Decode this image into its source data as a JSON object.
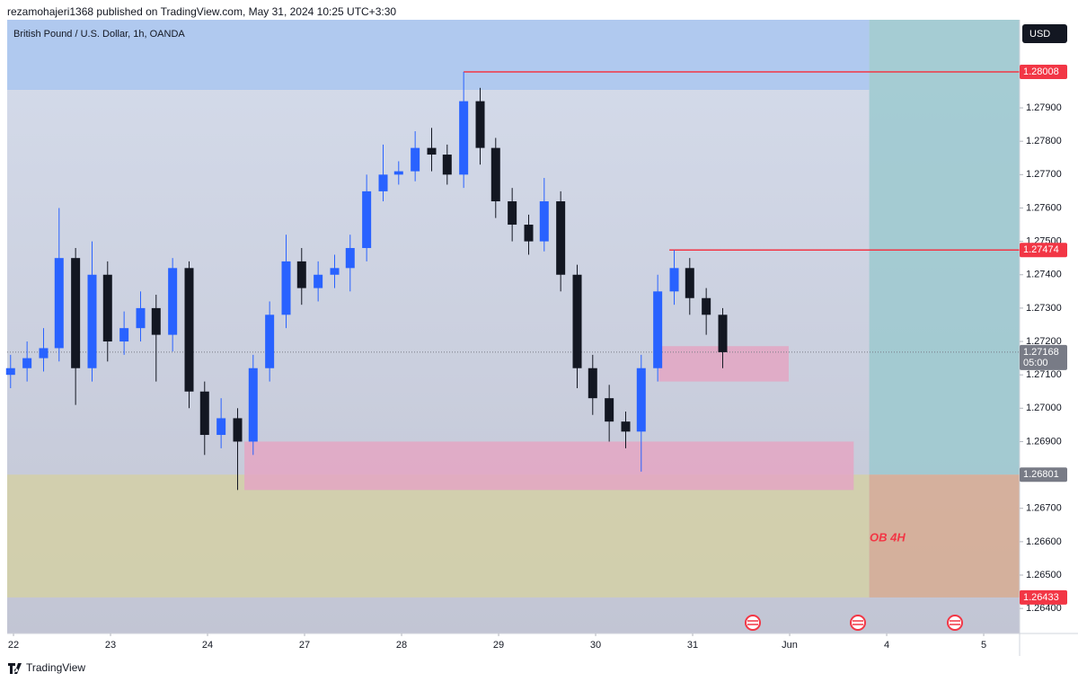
{
  "header": "rezamohajeri1368 published on TradingView.com, May 31, 2024 10:25 UTC+3:30",
  "footer": "TradingView",
  "chart_data": {
    "type": "candlestick",
    "title": "British Pound / U.S. Dollar, 1h, OANDA",
    "currency": "USD",
    "annotation": "OB 4H",
    "up_color": "#2962ff",
    "down_color": "#131722",
    "x": [
      -0.03,
      0.14,
      0.31,
      0.47,
      0.64,
      0.81,
      0.97,
      1.14,
      1.31,
      1.47,
      1.64,
      1.81,
      1.97,
      2.14,
      2.31,
      2.47,
      2.64,
      2.81,
      2.97,
      3.14,
      3.31,
      3.47,
      3.64,
      3.81,
      3.97,
      4.14,
      4.31,
      4.47,
      4.64,
      4.81,
      4.97,
      5.14,
      5.31,
      5.47,
      5.64,
      5.81,
      5.97,
      6.14,
      6.31,
      6.47,
      6.64,
      6.81,
      6.97,
      7.14,
      7.31
    ],
    "open": [
      1.271,
      1.2712,
      1.2715,
      1.2718,
      1.2745,
      1.2712,
      1.274,
      1.272,
      1.2724,
      1.273,
      1.2722,
      1.2742,
      1.2705,
      1.2692,
      1.2697,
      1.269,
      1.2712,
      1.2728,
      1.2744,
      1.2736,
      1.274,
      1.2742,
      1.2748,
      1.2765,
      1.277,
      1.2771,
      1.2778,
      1.2776,
      1.277,
      1.2792,
      1.2778,
      1.2762,
      1.2755,
      1.275,
      1.2762,
      1.274,
      1.2712,
      1.2703,
      1.2696,
      1.2693,
      1.2712,
      1.2735,
      1.2742,
      1.2733,
      1.2728
    ],
    "high": [
      1.2716,
      1.272,
      1.2724,
      1.276,
      1.2748,
      1.275,
      1.2744,
      1.2729,
      1.2735,
      1.2734,
      1.2745,
      1.2744,
      1.2708,
      1.2703,
      1.27,
      1.2716,
      1.2732,
      1.2752,
      1.2748,
      1.2744,
      1.2746,
      1.2752,
      1.277,
      1.2779,
      1.2774,
      1.2783,
      1.2784,
      1.2779,
      1.28008,
      1.2796,
      1.2781,
      1.2766,
      1.2758,
      1.2769,
      1.2765,
      1.2743,
      1.2716,
      1.2707,
      1.2699,
      1.2716,
      1.274,
      1.27474,
      1.2745,
      1.2736,
      1.273
    ],
    "low": [
      1.2706,
      1.2708,
      1.2711,
      1.2714,
      1.2701,
      1.2708,
      1.2714,
      1.2716,
      1.272,
      1.2708,
      1.2717,
      1.27,
      1.2686,
      1.2688,
      1.26755,
      1.2686,
      1.2708,
      1.2724,
      1.2731,
      1.2732,
      1.2736,
      1.2735,
      1.2744,
      1.2762,
      1.2767,
      1.2768,
      1.2771,
      1.2767,
      1.2766,
      1.2773,
      1.2757,
      1.275,
      1.2746,
      1.2747,
      1.2735,
      1.2706,
      1.2698,
      1.269,
      1.2688,
      1.2681,
      1.2708,
      1.2731,
      1.2728,
      1.2722,
      1.2712
    ],
    "close": [
      1.2712,
      1.2715,
      1.2718,
      1.2745,
      1.2712,
      1.274,
      1.272,
      1.2724,
      1.273,
      1.2722,
      1.2742,
      1.2705,
      1.2692,
      1.2697,
      1.269,
      1.2712,
      1.2728,
      1.2744,
      1.2736,
      1.274,
      1.2742,
      1.2748,
      1.2765,
      1.277,
      1.2771,
      1.2778,
      1.2776,
      1.277,
      1.2792,
      1.2778,
      1.2762,
      1.2755,
      1.275,
      1.2762,
      1.274,
      1.2712,
      1.2703,
      1.2696,
      1.2693,
      1.2712,
      1.2735,
      1.2742,
      1.2733,
      1.2728,
      1.27168
    ],
    "xlim": [
      -0.065,
      10.37
    ],
    "xticks": [
      {
        "value": 0,
        "label": "22"
      },
      {
        "value": 1,
        "label": "23"
      },
      {
        "value": 2,
        "label": "24"
      },
      {
        "value": 3,
        "label": "27"
      },
      {
        "value": 4,
        "label": "28"
      },
      {
        "value": 5,
        "label": "29"
      },
      {
        "value": 6,
        "label": "30"
      },
      {
        "value": 7,
        "label": "31"
      },
      {
        "value": 8,
        "label": "Jun"
      },
      {
        "value": 9,
        "label": "4"
      },
      {
        "value": 10,
        "label": "5"
      }
    ],
    "ylim": [
      1.26325,
      1.28164
    ],
    "yticks": [
      {
        "value": 1.264,
        "label": "1.26400"
      },
      {
        "value": 1.265,
        "label": "1.26500"
      },
      {
        "value": 1.266,
        "label": "1.26600"
      },
      {
        "value": 1.267,
        "label": "1.26700"
      },
      {
        "value": 1.268,
        "label": "1.26800"
      },
      {
        "value": 1.269,
        "label": "1.26900"
      },
      {
        "value": 1.27,
        "label": "1.27000"
      },
      {
        "value": 1.271,
        "label": "1.27100"
      },
      {
        "value": 1.272,
        "label": "1.27200"
      },
      {
        "value": 1.273,
        "label": "1.27300"
      },
      {
        "value": 1.274,
        "label": "1.27400"
      },
      {
        "value": 1.275,
        "label": "1.27500"
      },
      {
        "value": 1.276,
        "label": "1.27600"
      },
      {
        "value": 1.277,
        "label": "1.27700"
      },
      {
        "value": 1.278,
        "label": "1.27800"
      },
      {
        "value": 1.279,
        "label": "1.27900"
      }
    ],
    "zones": [
      {
        "from_x": -0.065,
        "to_x": 8.82,
        "low": 1.27954,
        "high": 1.28164,
        "color": "#a9c6f0"
      },
      {
        "from_x": -0.065,
        "to_x": 8.82,
        "low": 1.26433,
        "high": 1.26801,
        "color": "#d3d0a6"
      },
      {
        "from_x": 8.82,
        "to_x": 10.37,
        "low": 1.26801,
        "high": 1.28164,
        "color": "#9cc9cf",
        "axis_label_color": "#787b86"
      },
      {
        "from_x": 8.82,
        "to_x": 10.37,
        "low": 1.26433,
        "high": 1.26801,
        "color": "#d7ab92",
        "axis_label_color": "#f23645"
      },
      {
        "from_x": 2.38,
        "to_x": 8.66,
        "low": 1.26755,
        "high": 1.269,
        "color": "#e4a6c3"
      },
      {
        "from_x": 6.65,
        "to_x": 7.99,
        "low": 1.2708,
        "high": 1.27186,
        "color": "#e4a6c3"
      }
    ],
    "levels": [
      {
        "value": 1.28008,
        "from_x": 4.64,
        "color": "#f23645"
      },
      {
        "value": 1.27474,
        "from_x": 6.76,
        "color": "#f23645"
      }
    ],
    "last_price": {
      "value": 1.27168,
      "countdown": "05:00",
      "color": "#787b86"
    }
  }
}
